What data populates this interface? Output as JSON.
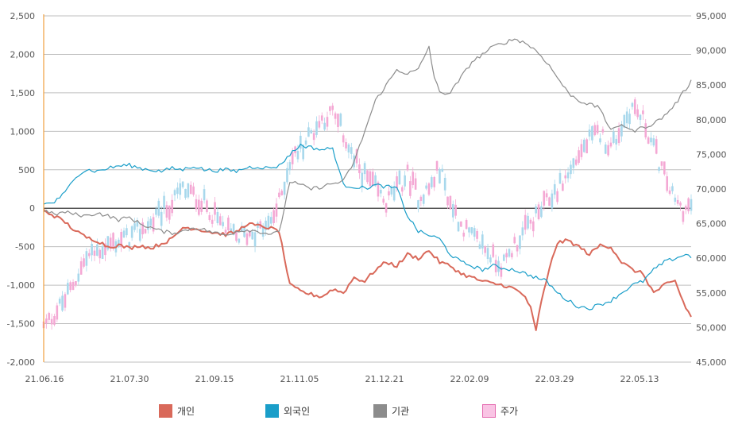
{
  "chart_data": {
    "type": "line",
    "title": "",
    "x_tick_labels": [
      "21.06.16",
      "21.07.30",
      "21.09.15",
      "21.11.05",
      "21.12.21",
      "22.02.09",
      "22.03.29",
      "22.05.13"
    ],
    "left_axis": {
      "ylim": [
        -2000,
        2500
      ],
      "ticks": [
        -2000,
        -1500,
        -1000,
        -500,
        0,
        500,
        1000,
        1500,
        2000,
        2500
      ]
    },
    "right_axis": {
      "ylim": [
        45000,
        95000
      ],
      "ticks": [
        45000,
        50000,
        55000,
        60000,
        65000,
        70000,
        75000,
        80000,
        85000,
        90000,
        95000
      ]
    },
    "grid": true,
    "legend_position": "bottom",
    "n_points": 243,
    "series": [
      {
        "name": "개인",
        "axis": "left",
        "color": "#d9695a",
        "keyframes": [
          [
            0,
            -30
          ],
          [
            4,
            -100
          ],
          [
            8,
            -180
          ],
          [
            12,
            -300
          ],
          [
            16,
            -380
          ],
          [
            20,
            -420
          ],
          [
            24,
            -500
          ],
          [
            28,
            -480
          ],
          [
            32,
            -520
          ],
          [
            36,
            -480
          ],
          [
            40,
            -520
          ],
          [
            44,
            -460
          ],
          [
            48,
            -400
          ],
          [
            52,
            -250
          ],
          [
            56,
            -260
          ],
          [
            60,
            -290
          ],
          [
            64,
            -320
          ],
          [
            68,
            -340
          ],
          [
            72,
            -310
          ],
          [
            76,
            -200
          ],
          [
            80,
            -230
          ],
          [
            84,
            -250
          ],
          [
            88,
            -300
          ],
          [
            92,
            -1000
          ],
          [
            96,
            -1080
          ],
          [
            100,
            -1120
          ],
          [
            104,
            -1150
          ],
          [
            108,
            -1050
          ],
          [
            112,
            -1100
          ],
          [
            116,
            -900
          ],
          [
            120,
            -950
          ],
          [
            124,
            -800
          ],
          [
            128,
            -700
          ],
          [
            132,
            -750
          ],
          [
            136,
            -600
          ],
          [
            140,
            -650
          ],
          [
            144,
            -550
          ],
          [
            148,
            -700
          ],
          [
            152,
            -750
          ],
          [
            156,
            -850
          ],
          [
            160,
            -900
          ],
          [
            164,
            -950
          ],
          [
            168,
            -980
          ],
          [
            172,
            -1000
          ],
          [
            176,
            -1050
          ],
          [
            180,
            -1150
          ],
          [
            182,
            -1300
          ],
          [
            184,
            -1600
          ],
          [
            186,
            -1200
          ],
          [
            188,
            -950
          ],
          [
            190,
            -650
          ],
          [
            192,
            -450
          ],
          [
            196,
            -420
          ],
          [
            200,
            -500
          ],
          [
            204,
            -600
          ],
          [
            208,
            -480
          ],
          [
            212,
            -500
          ],
          [
            216,
            -700
          ],
          [
            220,
            -800
          ],
          [
            224,
            -850
          ],
          [
            228,
            -1100
          ],
          [
            232,
            -1000
          ],
          [
            236,
            -950
          ],
          [
            240,
            -1300
          ],
          [
            243,
            -1450
          ]
        ]
      },
      {
        "name": "외국인",
        "axis": "left",
        "color": "#1a9ec9",
        "keyframes": [
          [
            0,
            50
          ],
          [
            4,
            80
          ],
          [
            8,
            200
          ],
          [
            12,
            420
          ],
          [
            16,
            500
          ],
          [
            20,
            480
          ],
          [
            24,
            520
          ],
          [
            28,
            550
          ],
          [
            32,
            560
          ],
          [
            36,
            520
          ],
          [
            40,
            500
          ],
          [
            44,
            480
          ],
          [
            48,
            520
          ],
          [
            52,
            500
          ],
          [
            56,
            550
          ],
          [
            60,
            500
          ],
          [
            64,
            490
          ],
          [
            68,
            500
          ],
          [
            72,
            480
          ],
          [
            76,
            530
          ],
          [
            80,
            540
          ],
          [
            84,
            520
          ],
          [
            88,
            550
          ],
          [
            92,
            700
          ],
          [
            96,
            820
          ],
          [
            100,
            790
          ],
          [
            104,
            760
          ],
          [
            108,
            780
          ],
          [
            112,
            300
          ],
          [
            116,
            280
          ],
          [
            120,
            260
          ],
          [
            124,
            300
          ],
          [
            128,
            280
          ],
          [
            132,
            260
          ],
          [
            136,
            -100
          ],
          [
            140,
            -300
          ],
          [
            144,
            -350
          ],
          [
            148,
            -400
          ],
          [
            152,
            -600
          ],
          [
            156,
            -700
          ],
          [
            160,
            -750
          ],
          [
            164,
            -800
          ],
          [
            168,
            -750
          ],
          [
            172,
            -780
          ],
          [
            176,
            -800
          ],
          [
            180,
            -850
          ],
          [
            184,
            -900
          ],
          [
            188,
            -950
          ],
          [
            192,
            -1100
          ],
          [
            196,
            -1200
          ],
          [
            200,
            -1280
          ],
          [
            204,
            -1300
          ],
          [
            208,
            -1250
          ],
          [
            212,
            -1200
          ],
          [
            216,
            -1100
          ],
          [
            220,
            -1000
          ],
          [
            224,
            -950
          ],
          [
            228,
            -800
          ],
          [
            232,
            -700
          ],
          [
            236,
            -650
          ],
          [
            240,
            -600
          ],
          [
            243,
            -650
          ]
        ]
      },
      {
        "name": "기관",
        "axis": "left",
        "color": "#8c8c8c",
        "keyframes": [
          [
            0,
            -30
          ],
          [
            4,
            -80
          ],
          [
            8,
            -50
          ],
          [
            12,
            -80
          ],
          [
            16,
            -100
          ],
          [
            20,
            -60
          ],
          [
            24,
            -100
          ],
          [
            28,
            -150
          ],
          [
            32,
            -120
          ],
          [
            36,
            -200
          ],
          [
            40,
            -250
          ],
          [
            44,
            -300
          ],
          [
            48,
            -320
          ],
          [
            52,
            -300
          ],
          [
            56,
            -250
          ],
          [
            60,
            -280
          ],
          [
            64,
            -320
          ],
          [
            68,
            -350
          ],
          [
            72,
            -300
          ],
          [
            76,
            -280
          ],
          [
            80,
            -300
          ],
          [
            84,
            -330
          ],
          [
            88,
            -320
          ],
          [
            92,
            350
          ],
          [
            96,
            300
          ],
          [
            100,
            250
          ],
          [
            104,
            280
          ],
          [
            108,
            320
          ],
          [
            112,
            350
          ],
          [
            116,
            600
          ],
          [
            120,
            1000
          ],
          [
            124,
            1400
          ],
          [
            128,
            1600
          ],
          [
            132,
            1800
          ],
          [
            136,
            1750
          ],
          [
            140,
            1800
          ],
          [
            144,
            2100
          ],
          [
            146,
            1700
          ],
          [
            148,
            1500
          ],
          [
            152,
            1500
          ],
          [
            156,
            1700
          ],
          [
            160,
            1900
          ],
          [
            164,
            2000
          ],
          [
            168,
            2100
          ],
          [
            172,
            2150
          ],
          [
            176,
            2200
          ],
          [
            180,
            2150
          ],
          [
            184,
            2050
          ],
          [
            188,
            1900
          ],
          [
            192,
            1700
          ],
          [
            196,
            1500
          ],
          [
            200,
            1400
          ],
          [
            204,
            1350
          ],
          [
            208,
            1300
          ],
          [
            212,
            1000
          ],
          [
            216,
            1100
          ],
          [
            220,
            1000
          ],
          [
            224,
            1050
          ],
          [
            228,
            1100
          ],
          [
            232,
            1200
          ],
          [
            236,
            1350
          ],
          [
            240,
            1550
          ],
          [
            243,
            1700
          ]
        ]
      },
      {
        "name": "주가",
        "axis": "right",
        "color": "#f4a8d4",
        "style": "candles",
        "keyframes": [
          [
            0,
            50000
          ],
          [
            8,
            54000
          ],
          [
            16,
            60000
          ],
          [
            24,
            62000
          ],
          [
            32,
            63000
          ],
          [
            40,
            65000
          ],
          [
            48,
            68000
          ],
          [
            52,
            70000
          ],
          [
            56,
            69000
          ],
          [
            60,
            68000
          ],
          [
            64,
            66000
          ],
          [
            68,
            64000
          ],
          [
            72,
            63000
          ],
          [
            76,
            63500
          ],
          [
            80,
            64000
          ],
          [
            84,
            64500
          ],
          [
            88,
            68000
          ],
          [
            92,
            74000
          ],
          [
            96,
            76000
          ],
          [
            100,
            78000
          ],
          [
            104,
            80000
          ],
          [
            108,
            81000
          ],
          [
            112,
            78000
          ],
          [
            116,
            74000
          ],
          [
            120,
            72000
          ],
          [
            124,
            70000
          ],
          [
            128,
            68000
          ],
          [
            132,
            70000
          ],
          [
            136,
            72000
          ],
          [
            140,
            69000
          ],
          [
            144,
            70000
          ],
          [
            148,
            73000
          ],
          [
            152,
            68000
          ],
          [
            156,
            65000
          ],
          [
            160,
            63000
          ],
          [
            164,
            62000
          ],
          [
            168,
            60000
          ],
          [
            172,
            59000
          ],
          [
            176,
            62000
          ],
          [
            180,
            64000
          ],
          [
            184,
            66000
          ],
          [
            188,
            68000
          ],
          [
            192,
            70000
          ],
          [
            196,
            72000
          ],
          [
            200,
            75000
          ],
          [
            204,
            77000
          ],
          [
            208,
            78000
          ],
          [
            212,
            76000
          ],
          [
            216,
            79000
          ],
          [
            220,
            82000
          ],
          [
            224,
            80000
          ],
          [
            228,
            76000
          ],
          [
            232,
            72000
          ],
          [
            236,
            68000
          ],
          [
            240,
            67000
          ],
          [
            243,
            68000
          ]
        ]
      }
    ]
  },
  "legend": [
    {
      "label": "개인",
      "color": "#d9695a"
    },
    {
      "label": "외국인",
      "color": "#1a9ec9"
    },
    {
      "label": "기관",
      "color": "#8c8c8c"
    },
    {
      "label": "주가",
      "color": "#f9c4e4",
      "border": "#e46bb0"
    }
  ]
}
